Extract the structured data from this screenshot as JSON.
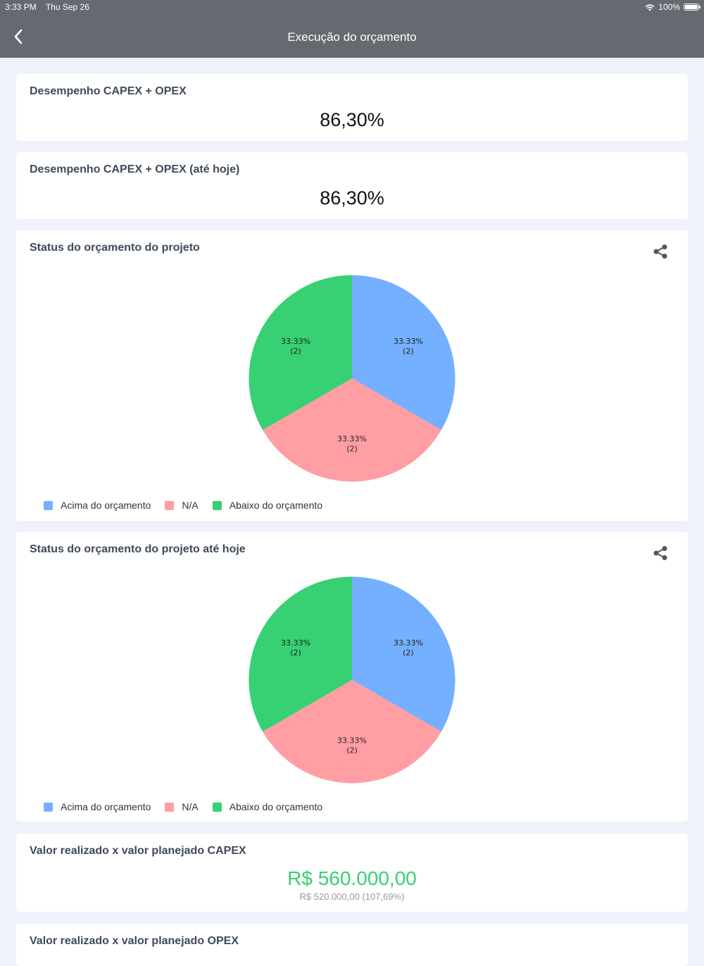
{
  "status_bar": {
    "time": "3:33 PM",
    "date": "Thu Sep 26",
    "battery": "100%"
  },
  "header": {
    "title": "Execução do orçamento"
  },
  "kpis": [
    {
      "title": "Desempenho CAPEX + OPEX",
      "value": "86,30%"
    },
    {
      "title": "Desempenho CAPEX + OPEX (até hoje)",
      "value": "86,30%"
    }
  ],
  "colors": {
    "acima": "#74b0ff",
    "na": "#ff9ea3",
    "abaixo": "#37d073"
  },
  "chart_data": [
    {
      "type": "pie",
      "title": "Status do orçamento do projeto",
      "categories": [
        "Acima do orçamento",
        "N/A",
        "Abaixo do orçamento"
      ],
      "values": [
        2,
        2,
        2
      ],
      "labels": [
        {
          "pct": "33.33%",
          "count": "(2)"
        },
        {
          "pct": "33.33%",
          "count": "(2)"
        },
        {
          "pct": "33.33%",
          "count": "(2)"
        }
      ],
      "legend_position": "bottom-left"
    },
    {
      "type": "pie",
      "title": "Status do orçamento do projeto até hoje",
      "categories": [
        "Acima do orçamento",
        "N/A",
        "Abaixo do orçamento"
      ],
      "values": [
        2,
        2,
        2
      ],
      "labels": [
        {
          "pct": "33.33%",
          "count": "(2)"
        },
        {
          "pct": "33.33%",
          "count": "(2)"
        },
        {
          "pct": "33.33%",
          "count": "(2)"
        }
      ],
      "legend_position": "bottom-left"
    }
  ],
  "capex": {
    "title": "Valor realizado x valor planejado CAPEX",
    "realized": "R$ 560.000,00",
    "planned": "R$ 520.000,00 (107,69%)"
  },
  "opex": {
    "title": "Valor realizado x valor planejado OPEX"
  }
}
